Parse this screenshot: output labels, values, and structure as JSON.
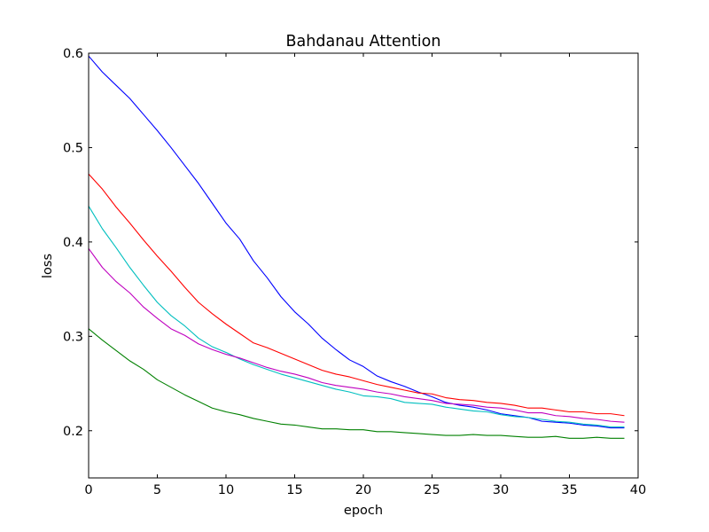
{
  "chart_data": {
    "type": "line",
    "title": "Bahdanau Attention",
    "xlabel": "epoch",
    "ylabel": "loss",
    "xlim": [
      0,
      40
    ],
    "ylim": [
      0.15,
      0.6
    ],
    "xticks": [
      0,
      5,
      10,
      15,
      20,
      25,
      30,
      35,
      40
    ],
    "yticks": [
      0.2,
      0.3,
      0.4,
      0.5,
      0.6
    ],
    "xtick_labels": [
      "0",
      "5",
      "10",
      "15",
      "20",
      "25",
      "30",
      "35",
      "40"
    ],
    "ytick_labels": [
      "0.2",
      "0.3",
      "0.4",
      "0.5",
      "0.6"
    ],
    "grid": false,
    "legend": null,
    "x": [
      0,
      1,
      2,
      3,
      4,
      5,
      6,
      7,
      8,
      9,
      10,
      11,
      12,
      13,
      14,
      15,
      16,
      17,
      18,
      19,
      20,
      21,
      22,
      23,
      24,
      25,
      26,
      27,
      28,
      29,
      30,
      31,
      32,
      33,
      34,
      35,
      36,
      37,
      38,
      39
    ],
    "series": [
      {
        "color": "#0000ff",
        "values": [
          0.597,
          0.58,
          0.566,
          0.552,
          0.535,
          0.518,
          0.5,
          0.481,
          0.462,
          0.441,
          0.42,
          0.403,
          0.38,
          0.362,
          0.342,
          0.326,
          0.313,
          0.298,
          0.286,
          0.275,
          0.268,
          0.258,
          0.252,
          0.247,
          0.241,
          0.236,
          0.23,
          0.227,
          0.225,
          0.222,
          0.218,
          0.216,
          0.214,
          0.21,
          0.209,
          0.208,
          0.206,
          0.205,
          0.203,
          0.203
        ]
      },
      {
        "color": "#ff0000",
        "values": [
          0.472,
          0.456,
          0.437,
          0.42,
          0.402,
          0.385,
          0.369,
          0.352,
          0.336,
          0.324,
          0.313,
          0.303,
          0.293,
          0.288,
          0.282,
          0.276,
          0.27,
          0.264,
          0.26,
          0.257,
          0.253,
          0.249,
          0.246,
          0.243,
          0.24,
          0.239,
          0.235,
          0.233,
          0.232,
          0.23,
          0.229,
          0.227,
          0.224,
          0.224,
          0.222,
          0.22,
          0.22,
          0.218,
          0.218,
          0.216
        ]
      },
      {
        "color": "#00bfbf",
        "values": [
          0.438,
          0.414,
          0.394,
          0.373,
          0.354,
          0.336,
          0.322,
          0.311,
          0.298,
          0.289,
          0.283,
          0.276,
          0.27,
          0.265,
          0.26,
          0.256,
          0.252,
          0.248,
          0.244,
          0.241,
          0.237,
          0.236,
          0.234,
          0.23,
          0.229,
          0.228,
          0.225,
          0.223,
          0.221,
          0.22,
          0.217,
          0.215,
          0.214,
          0.212,
          0.21,
          0.209,
          0.207,
          0.206,
          0.204,
          0.204
        ]
      },
      {
        "color": "#bf00bf",
        "values": [
          0.393,
          0.373,
          0.358,
          0.346,
          0.331,
          0.319,
          0.308,
          0.301,
          0.292,
          0.286,
          0.281,
          0.277,
          0.272,
          0.267,
          0.263,
          0.26,
          0.256,
          0.251,
          0.248,
          0.246,
          0.244,
          0.241,
          0.239,
          0.236,
          0.234,
          0.232,
          0.229,
          0.228,
          0.227,
          0.225,
          0.224,
          0.222,
          0.219,
          0.219,
          0.216,
          0.215,
          0.213,
          0.212,
          0.21,
          0.209
        ]
      },
      {
        "color": "#008000",
        "values": [
          0.308,
          0.296,
          0.285,
          0.274,
          0.265,
          0.254,
          0.246,
          0.238,
          0.231,
          0.224,
          0.22,
          0.217,
          0.213,
          0.21,
          0.207,
          0.206,
          0.204,
          0.202,
          0.202,
          0.201,
          0.201,
          0.199,
          0.199,
          0.198,
          0.197,
          0.196,
          0.195,
          0.195,
          0.196,
          0.195,
          0.195,
          0.194,
          0.193,
          0.193,
          0.194,
          0.192,
          0.192,
          0.193,
          0.192,
          0.192
        ]
      }
    ]
  }
}
